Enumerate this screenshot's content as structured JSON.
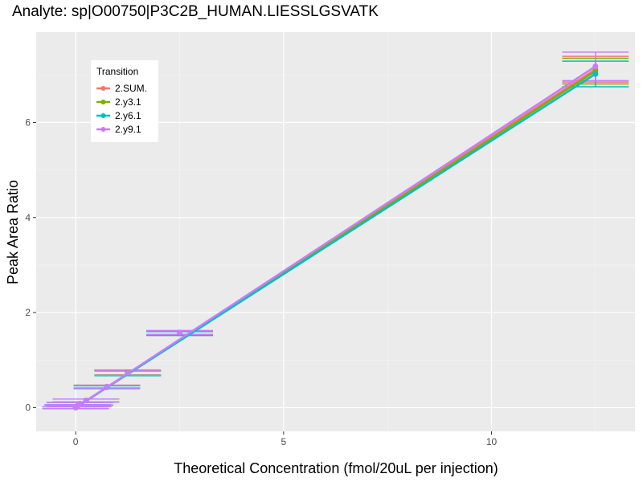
{
  "chart_data": {
    "type": "line",
    "title": "Analyte: sp|O00750|P3C2B_HUMAN.LIESSLGSVATK",
    "xlabel": "Theoretical Concentration (fmol/20uL per injection)",
    "ylabel": "Peak Area Ratio",
    "xlim": [
      -0.95,
      13.45
    ],
    "ylim": [
      -0.5,
      7.9
    ],
    "xticks": [
      0,
      5,
      10
    ],
    "xtick_labels": [
      "0",
      "5",
      "10"
    ],
    "yticks": [
      0,
      2,
      4,
      6
    ],
    "ytick_labels": [
      "0",
      "2",
      "4",
      "6"
    ],
    "grid": true,
    "legend": {
      "title": "Transition",
      "placement": "top-left"
    },
    "x": [
      0,
      0.05,
      0.1,
      0.25,
      0.75,
      1.25,
      2.5,
      12.5
    ],
    "series": [
      {
        "name": "2.SUM.",
        "color": "#F8766D",
        "values": [
          0.0,
          0.04,
          0.08,
          0.15,
          0.44,
          0.73,
          1.58,
          7.12
        ],
        "err": [
          0.02,
          0.02,
          0.03,
          0.03,
          0.03,
          0.05,
          0.04,
          0.27
        ],
        "fit_end": 7.12
      },
      {
        "name": "2.y3.1",
        "color": "#7CAE00",
        "values": [
          0.0,
          0.04,
          0.08,
          0.15,
          0.44,
          0.74,
          1.57,
          7.08
        ],
        "err": [
          0.02,
          0.02,
          0.03,
          0.03,
          0.03,
          0.05,
          0.05,
          0.27
        ],
        "fit_end": 7.08
      },
      {
        "name": "2.y6.1",
        "color": "#00BFC4",
        "values": [
          0.0,
          0.04,
          0.08,
          0.15,
          0.43,
          0.72,
          1.56,
          7.02
        ],
        "err": [
          0.02,
          0.02,
          0.03,
          0.03,
          0.03,
          0.05,
          0.04,
          0.27
        ],
        "fit_end": 7.02
      },
      {
        "name": "2.y9.1",
        "color": "#C77CFF",
        "values": [
          0.0,
          0.04,
          0.08,
          0.15,
          0.44,
          0.73,
          1.58,
          7.18
        ],
        "err": [
          0.02,
          0.02,
          0.03,
          0.03,
          0.03,
          0.05,
          0.04,
          0.3
        ],
        "fit_end": 7.18
      }
    ],
    "errorbar_halfwidth": 0.8
  }
}
